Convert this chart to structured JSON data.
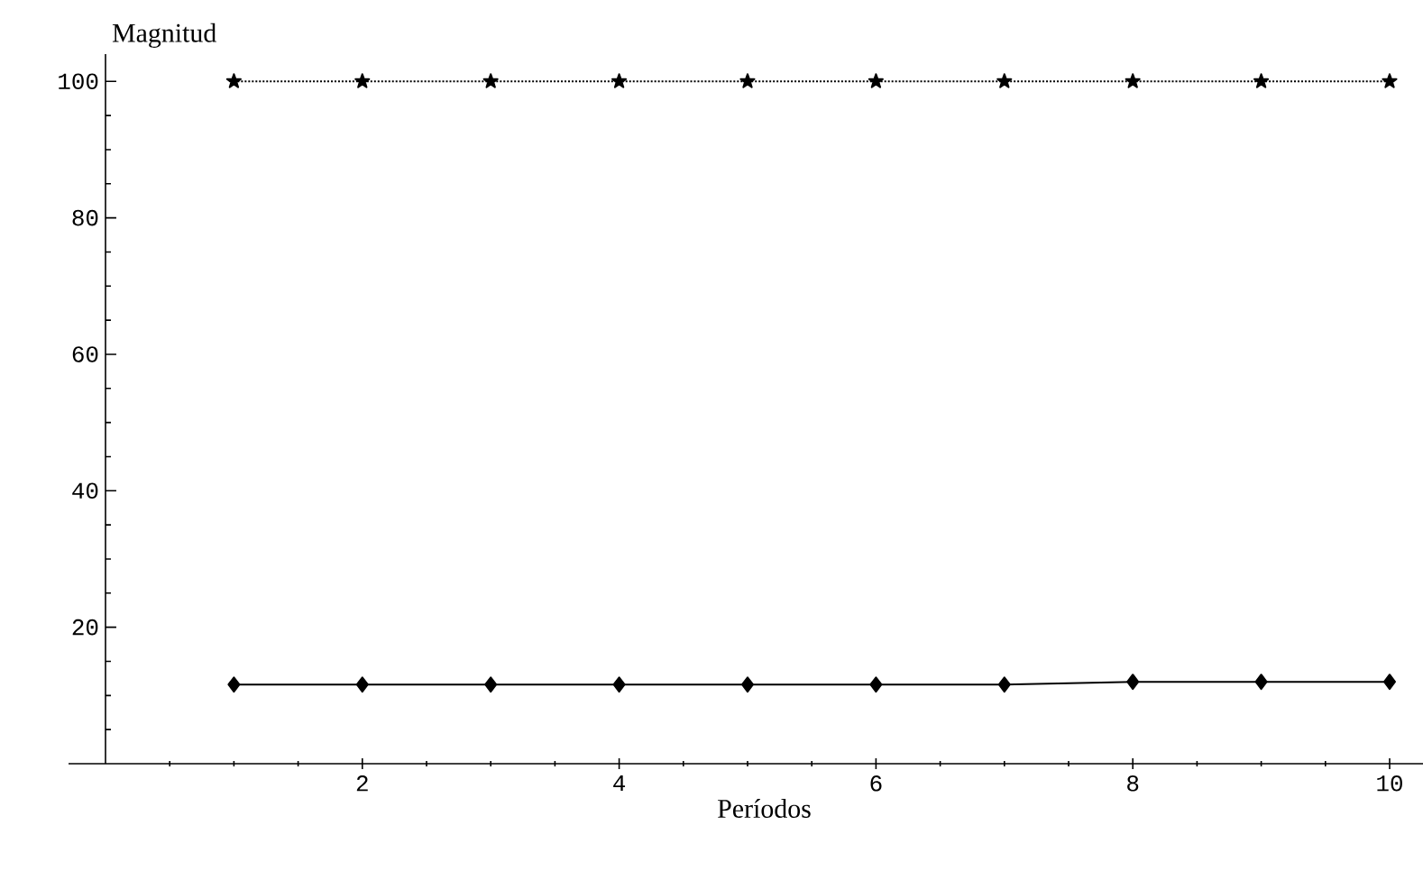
{
  "chart_data": {
    "type": "line",
    "xlabel": "Períodos",
    "ylabel": "Magnitud",
    "x": [
      1,
      2,
      3,
      4,
      5,
      6,
      7,
      8,
      9,
      10
    ],
    "series": [
      {
        "color": "#000000",
        "marker": "star",
        "line_style": "dotted",
        "values": [
          100,
          100,
          100,
          100,
          100,
          100,
          100,
          100,
          100,
          100
        ]
      },
      {
        "color": "#000000",
        "marker": "diamond",
        "line_style": "solid",
        "values": [
          11.6,
          11.6,
          11.6,
          11.6,
          11.6,
          11.6,
          11.6,
          12,
          12,
          12
        ]
      }
    ],
    "xlim": [
      0,
      10.26
    ],
    "ylim": [
      0,
      104
    ],
    "xticks": [
      {
        "value": 0.5,
        "label": null
      },
      {
        "value": 1,
        "label": null
      },
      {
        "value": 1.5,
        "label": null
      },
      2,
      {
        "value": 2.5,
        "label": null
      },
      {
        "value": 3,
        "label": null
      },
      {
        "value": 3.5,
        "label": null
      },
      4,
      {
        "value": 4.5,
        "label": null
      },
      {
        "value": 5,
        "label": null
      },
      {
        "value": 5.5,
        "label": null
      },
      6,
      {
        "value": 6.5,
        "label": null
      },
      {
        "value": 7,
        "label": null
      },
      {
        "value": 7.5,
        "label": null
      },
      8,
      {
        "value": 8.5,
        "label": null
      },
      {
        "value": 9,
        "label": null
      },
      {
        "value": 9.5,
        "label": null
      },
      10
    ],
    "yticks": [
      {
        "value": 5,
        "label": null
      },
      {
        "value": 10,
        "label": null
      },
      {
        "value": 15,
        "label": null
      },
      20,
      {
        "value": 25,
        "label": null
      },
      {
        "value": 30,
        "label": null
      },
      {
        "value": 35,
        "label": null
      },
      40,
      {
        "value": 45,
        "label": null
      },
      {
        "value": 50,
        "label": null
      },
      {
        "value": 55,
        "label": null
      },
      60,
      {
        "value": 65,
        "label": null
      },
      {
        "value": 70,
        "label": null
      },
      {
        "value": 75,
        "label": null
      },
      80,
      {
        "value": 85,
        "label": null
      },
      {
        "value": 90,
        "label": null
      },
      {
        "value": 95,
        "label": null
      },
      100
    ]
  }
}
